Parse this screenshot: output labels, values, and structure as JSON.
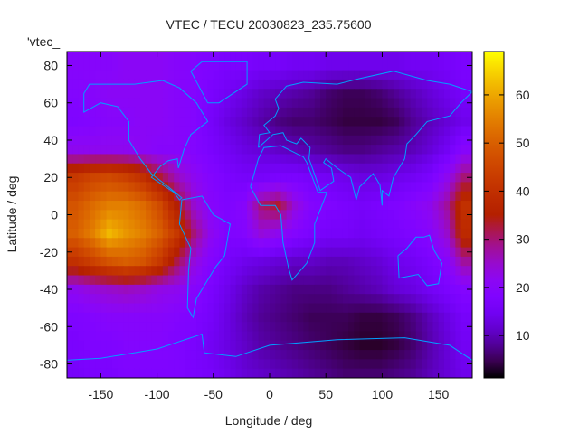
{
  "chart_data": {
    "type": "heatmap",
    "title": "VTEC / TECU 20030823_235.75600",
    "xlabel": "Longitude / deg",
    "ylabel": "Latitude / deg",
    "legend_entry": "'vtec_",
    "legend_placement": "top-left",
    "xlim": [
      -180,
      180
    ],
    "ylim": [
      -87.5,
      87.5
    ],
    "cbrange": [
      1.2,
      69
    ],
    "xticks": [
      -150,
      -100,
      -50,
      0,
      50,
      100,
      150
    ],
    "yticks": [
      -80,
      -60,
      -40,
      -20,
      0,
      20,
      40,
      60,
      80
    ],
    "cbticks": [
      10,
      20,
      30,
      40,
      50,
      60
    ],
    "grid": false,
    "colormap": "gnuplot rgbformulae 7,5,15 (black-purple-red-yellow)",
    "coastline_color": "#00a0ff",
    "lon_centers": [
      -172.5,
      -157.5,
      -142.5,
      -127.5,
      -112.5,
      -97.5,
      -82.5,
      -67.5,
      -52.5,
      -37.5,
      -22.5,
      -7.5,
      7.5,
      22.5,
      37.5,
      52.5,
      67.5,
      82.5,
      97.5,
      112.5,
      127.5,
      142.5,
      157.5,
      172.5
    ],
    "lat_centers": [
      80,
      65,
      50,
      35,
      20,
      5,
      -10,
      -25,
      -40,
      -55,
      -70,
      -85
    ],
    "values": [
      [
        20,
        20,
        20,
        21,
        21,
        21,
        20,
        19,
        18,
        17,
        17,
        16,
        16,
        15,
        15,
        14,
        14,
        14,
        14,
        14,
        15,
        15,
        16,
        17
      ],
      [
        19,
        20,
        21,
        21,
        21,
        21,
        20,
        19,
        17,
        15,
        13,
        11,
        10,
        9,
        8,
        6,
        5,
        5,
        6,
        8,
        10,
        12,
        14,
        16
      ],
      [
        18,
        19,
        20,
        20,
        21,
        21,
        20,
        19,
        16,
        13,
        11,
        9,
        7,
        6,
        6,
        5,
        4,
        4,
        4,
        5,
        8,
        10,
        12,
        14
      ],
      [
        22,
        22,
        22,
        22,
        21,
        20,
        20,
        19,
        17,
        15,
        13,
        12,
        11,
        10,
        9,
        8,
        7,
        7,
        8,
        9,
        10,
        12,
        15,
        20
      ],
      [
        42,
        45,
        46,
        44,
        40,
        33,
        26,
        22,
        19,
        17,
        16,
        16,
        17,
        17,
        16,
        15,
        14,
        13,
        13,
        14,
        15,
        17,
        22,
        30
      ],
      [
        48,
        52,
        55,
        55,
        52,
        46,
        35,
        25,
        20,
        18,
        20,
        30,
        33,
        24,
        19,
        18,
        17,
        16,
        17,
        18,
        20,
        22,
        28,
        40
      ],
      [
        50,
        55,
        62,
        58,
        55,
        50,
        42,
        30,
        22,
        18,
        19,
        24,
        22,
        19,
        17,
        16,
        16,
        15,
        16,
        17,
        18,
        20,
        25,
        38
      ],
      [
        40,
        44,
        48,
        50,
        48,
        42,
        32,
        24,
        19,
        16,
        14,
        13,
        12,
        11,
        11,
        10,
        10,
        11,
        12,
        14,
        15,
        17,
        20,
        28
      ],
      [
        22,
        24,
        25,
        26,
        25,
        23,
        22,
        20,
        17,
        14,
        11,
        9,
        8,
        7,
        7,
        7,
        8,
        9,
        10,
        12,
        13,
        15,
        17,
        19
      ],
      [
        18,
        19,
        20,
        20,
        20,
        20,
        19,
        18,
        16,
        13,
        10,
        8,
        7,
        6,
        5,
        5,
        5,
        4,
        4,
        5,
        7,
        10,
        13,
        16
      ],
      [
        17,
        18,
        18,
        19,
        19,
        19,
        18,
        17,
        15,
        13,
        11,
        9,
        8,
        7,
        6,
        5,
        4,
        3,
        3,
        4,
        6,
        9,
        12,
        15
      ],
      [
        16,
        17,
        17,
        18,
        18,
        18,
        18,
        17,
        16,
        14,
        12,
        11,
        10,
        9,
        8,
        7,
        6,
        6,
        6,
        7,
        8,
        10,
        12,
        14
      ]
    ]
  }
}
